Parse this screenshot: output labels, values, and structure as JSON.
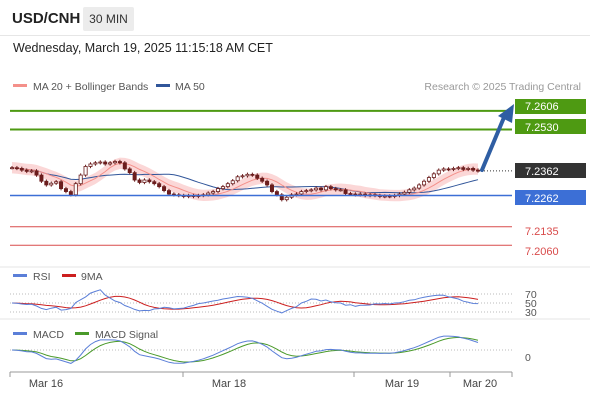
{
  "header": {
    "symbol": "USD/CNH",
    "timeframe": "30 MIN",
    "datetime": "Wednesday, March 19, 2025 11:15:18 AM CET"
  },
  "legend": {
    "ma20_label": "MA 20 + Bollinger Bands",
    "ma50_label": "MA 50",
    "credit": "Research © 2025 Trading Central",
    "ma20_color": "#f4908a",
    "ma50_color": "#31569a"
  },
  "levels": [
    {
      "value": "7.2606",
      "kind": "resistance"
    },
    {
      "value": "7.2530",
      "kind": "resistance"
    },
    {
      "value": "7.2362",
      "kind": "current"
    },
    {
      "value": "7.2262",
      "kind": "pivot"
    },
    {
      "value": "7.2135",
      "kind": "support"
    },
    {
      "value": "7.2060",
      "kind": "support"
    }
  ],
  "rsi": {
    "label": "RSI",
    "signal_label": "9MA",
    "levels": [
      "70",
      "50",
      "30"
    ],
    "rsi_color": "#5b7fd8",
    "ma_color": "#cc1f1f"
  },
  "macd": {
    "label": "MACD",
    "signal_label": "MACD Signal",
    "zero_label": "0",
    "macd_color": "#5b7fd8",
    "signal_color": "#4a9a2a"
  },
  "xaxis": {
    "ticks": [
      "Mar 16",
      "Mar 18",
      "Mar 19",
      "Mar 20"
    ]
  },
  "colors": {
    "resistance": "#4e9a12",
    "pivot": "#3c6fd6",
    "support": "#d94b4b",
    "current": "#333333",
    "arrow": "#2f5ea3",
    "candle": "#6b1d1d",
    "band_fill": "#f9c9c9"
  },
  "chart_data": {
    "type": "candlestick",
    "symbol": "USD/CNH",
    "interval": "30 MIN",
    "y_range": [
      7.2,
      7.265
    ],
    "support_resistance": [
      7.2606,
      7.253,
      7.2262,
      7.2135,
      7.206
    ],
    "last_price": 7.2362,
    "close_path": [
      7.2375,
      7.2372,
      7.2365,
      7.236,
      7.2362,
      7.2345,
      7.232,
      7.2305,
      7.2312,
      7.2318,
      7.229,
      7.2278,
      7.2265,
      7.231,
      7.2345,
      7.238,
      7.239,
      7.2395,
      7.2398,
      7.239,
      7.2395,
      7.24,
      7.2395,
      7.237,
      7.2355,
      7.2325,
      7.2315,
      7.2325,
      7.2318,
      7.231,
      7.2298,
      7.2282,
      7.2268,
      7.2265,
      7.2262,
      7.2258,
      7.2262,
      7.2258,
      7.2262,
      7.2265,
      7.2272,
      7.2278,
      7.229,
      7.2298,
      7.231,
      7.2322,
      7.2338,
      7.2342,
      7.2348,
      7.2345,
      7.2332,
      7.232,
      7.2305,
      7.2278,
      7.2265,
      7.2245,
      7.2255,
      7.2265,
      7.2268,
      7.2278,
      7.2282,
      7.2285,
      7.2292,
      7.2285,
      7.2298,
      7.229,
      7.2285,
      7.2285,
      7.227,
      7.2268,
      7.2265,
      7.2268,
      7.2262,
      7.2265,
      7.2262,
      7.2258,
      7.226,
      7.2258,
      7.2262,
      7.2268,
      7.2275,
      7.2285,
      7.2292,
      7.2305,
      7.232,
      7.2335,
      7.235,
      7.2365,
      7.237,
      7.2368,
      7.2372,
      7.2375,
      7.2368,
      7.2372,
      7.2365,
      7.2362
    ],
    "projection": {
      "from": 7.2362,
      "to": 7.2606
    }
  }
}
